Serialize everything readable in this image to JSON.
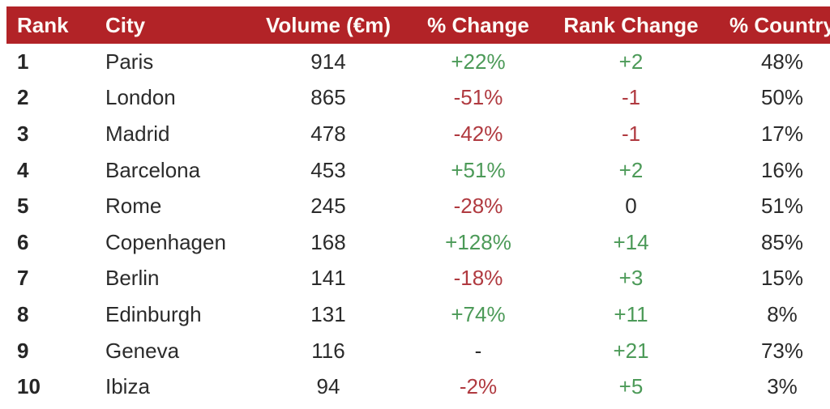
{
  "chart_data": {
    "type": "table",
    "title": "",
    "columns": [
      "Rank",
      "City",
      "Volume (€m)",
      "% Change",
      "Rank Change",
      "% Country"
    ],
    "rows": [
      {
        "rank": "1",
        "city": "Paris",
        "volume": "914",
        "pct_change": {
          "text": "+22%",
          "tone": "positive"
        },
        "rank_change": {
          "text": "+2",
          "tone": "positive"
        },
        "pct_country": "48%"
      },
      {
        "rank": "2",
        "city": "London",
        "volume": "865",
        "pct_change": {
          "text": "-51%",
          "tone": "negative"
        },
        "rank_change": {
          "text": "-1",
          "tone": "negative"
        },
        "pct_country": "50%"
      },
      {
        "rank": "3",
        "city": "Madrid",
        "volume": "478",
        "pct_change": {
          "text": "-42%",
          "tone": "negative"
        },
        "rank_change": {
          "text": "-1",
          "tone": "negative"
        },
        "pct_country": "17%"
      },
      {
        "rank": "4",
        "city": "Barcelona",
        "volume": "453",
        "pct_change": {
          "text": "+51%",
          "tone": "positive"
        },
        "rank_change": {
          "text": "+2",
          "tone": "positive"
        },
        "pct_country": "16%"
      },
      {
        "rank": "5",
        "city": "Rome",
        "volume": "245",
        "pct_change": {
          "text": "-28%",
          "tone": "negative"
        },
        "rank_change": {
          "text": "0",
          "tone": "neutral"
        },
        "pct_country": "51%"
      },
      {
        "rank": "6",
        "city": "Copenhagen",
        "volume": "168",
        "pct_change": {
          "text": "+128%",
          "tone": "positive"
        },
        "rank_change": {
          "text": "+14",
          "tone": "positive"
        },
        "pct_country": "85%"
      },
      {
        "rank": "7",
        "city": "Berlin",
        "volume": "141",
        "pct_change": {
          "text": "-18%",
          "tone": "negative"
        },
        "rank_change": {
          "text": "+3",
          "tone": "positive"
        },
        "pct_country": "15%"
      },
      {
        "rank": "8",
        "city": "Edinburgh",
        "volume": "131",
        "pct_change": {
          "text": "+74%",
          "tone": "positive"
        },
        "rank_change": {
          "text": "+11",
          "tone": "positive"
        },
        "pct_country": "8%"
      },
      {
        "rank": "9",
        "city": "Geneva",
        "volume": "116",
        "pct_change": {
          "text": "-",
          "tone": "neutral"
        },
        "rank_change": {
          "text": "+21",
          "tone": "positive"
        },
        "pct_country": "73%"
      },
      {
        "rank": "10",
        "city": "Ibiza",
        "volume": "94",
        "pct_change": {
          "text": "-2%",
          "tone": "negative"
        },
        "rank_change": {
          "text": "+5",
          "tone": "positive"
        },
        "pct_country": "3%"
      }
    ]
  },
  "colors": {
    "header_bg": "#B22327",
    "header_text": "#FDFBF7",
    "positive": "#4C9A58",
    "negative": "#B03A40",
    "neutral_text": "#2B2B2B"
  }
}
